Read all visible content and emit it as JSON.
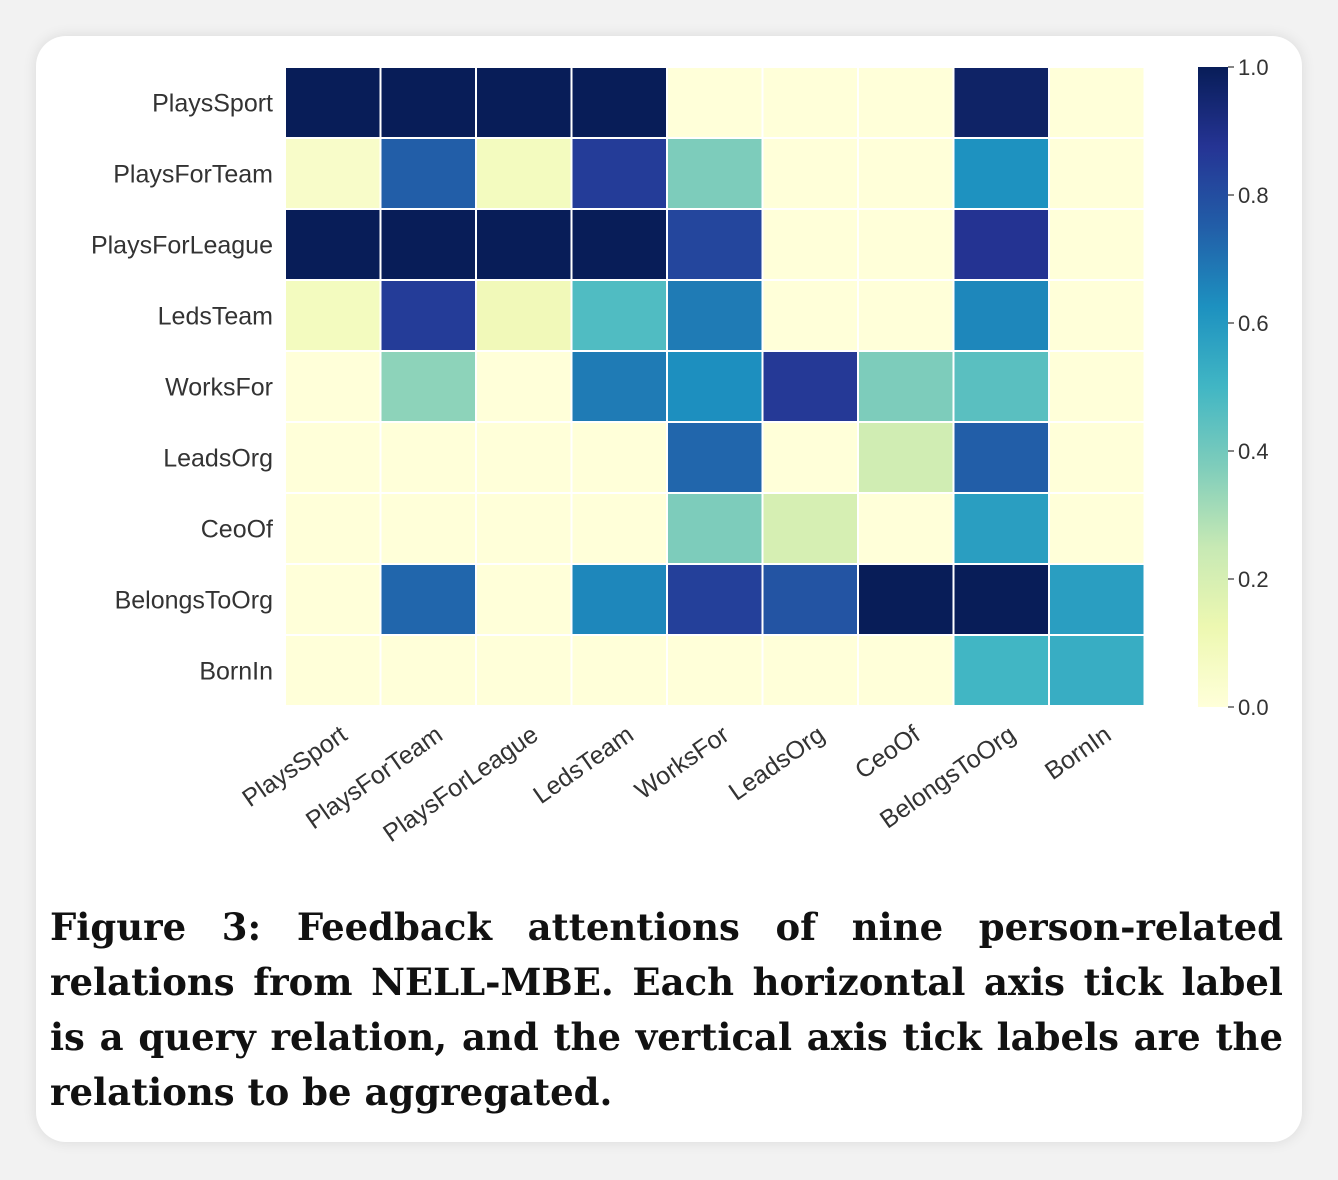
{
  "chart_data": {
    "type": "heatmap",
    "x_labels": [
      "PlaysSport",
      "PlaysForTeam",
      "PlaysForLeague",
      "LedsTeam",
      "WorksFor",
      "LeadsOrg",
      "CeoOf",
      "BelongsToOrg",
      "BornIn"
    ],
    "y_labels": [
      "PlaysSport",
      "PlaysForTeam",
      "PlaysForLeague",
      "LedsTeam",
      "WorksFor",
      "LeadsOrg",
      "CeoOf",
      "BelongsToOrg",
      "BornIn"
    ],
    "values": [
      [
        1.0,
        1.0,
        1.0,
        1.0,
        0.0,
        0.0,
        0.0,
        0.97,
        0.0
      ],
      [
        0.05,
        0.75,
        0.08,
        0.85,
        0.38,
        0.0,
        0.0,
        0.62,
        0.0
      ],
      [
        1.0,
        1.0,
        1.0,
        1.0,
        0.82,
        0.0,
        0.0,
        0.88,
        0.0
      ],
      [
        0.08,
        0.85,
        0.1,
        0.47,
        0.68,
        0.0,
        0.0,
        0.65,
        0.0
      ],
      [
        0.0,
        0.35,
        0.0,
        0.68,
        0.63,
        0.86,
        0.38,
        0.45,
        0.0
      ],
      [
        0.0,
        0.0,
        0.0,
        0.0,
        0.73,
        0.0,
        0.22,
        0.75,
        0.0
      ],
      [
        0.0,
        0.0,
        0.0,
        0.0,
        0.38,
        0.2,
        0.0,
        0.58,
        0.0
      ],
      [
        0.0,
        0.73,
        0.0,
        0.65,
        0.84,
        0.78,
        1.0,
        1.0,
        0.58
      ],
      [
        0.0,
        0.0,
        0.0,
        0.0,
        0.0,
        0.0,
        0.0,
        0.5,
        0.53
      ]
    ],
    "colorbar": {
      "range": [
        0.0,
        1.0
      ],
      "ticks": [
        "0.0",
        "0.2",
        "0.4",
        "0.6",
        "0.8",
        "1.0"
      ],
      "colormap": [
        "#ffffd9",
        "#edf8b1",
        "#c7e9b4",
        "#7fcdbb",
        "#41b6c4",
        "#1d91c0",
        "#225ea8",
        "#253494",
        "#081d58"
      ]
    },
    "title": "",
    "xlabel": "",
    "ylabel": ""
  },
  "caption": {
    "text": "Figure 3: Feedback attentions of nine person-related relations from NELL-MBE. Each horizontal axis tick label is a query relation, and the vertical axis tick labels are the relations to be aggregated."
  }
}
